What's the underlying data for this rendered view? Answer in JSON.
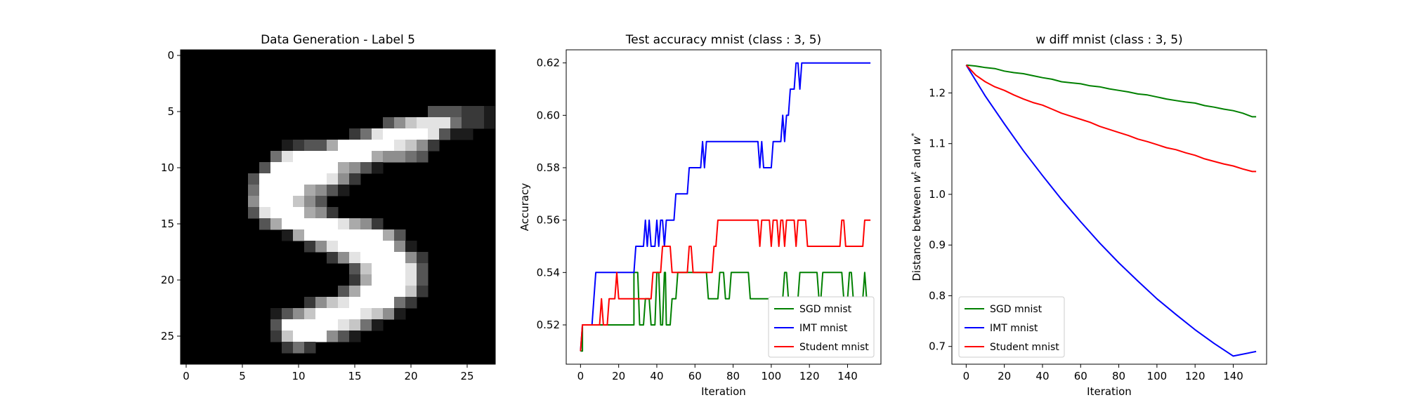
{
  "chart_data": [
    {
      "type": "heatmap",
      "title": "Data Generation - Label 5",
      "colormap": "grayscale",
      "xlim": [
        -0.5,
        27.5
      ],
      "ylim": [
        27.5,
        -0.5
      ],
      "xticks": [
        0,
        5,
        10,
        15,
        20,
        25
      ],
      "yticks": [
        0,
        5,
        10,
        15,
        20,
        25
      ],
      "image_rows": [
        "0000000000000000000000000000",
        "0000000000000000000000000000",
        "0000000000000000000000000000",
        "0000000000000000000000000000",
        "0000000000000000000000000000",
        "0000000000000000000000333221",
        "0000000000000000003578884221",
        "0000000000000002489999831100",
        "0000000001233699999875200000",
        "0000000048999999965543000000",
        "0000000399999965310000000000",
        "0000003999999852000000000000",
        "0000004999965310000000000000",
        "0000005999753000000000000000",
        "0000003899965200000000000000",
        "0000000369999986520000000000",
        "0000000001699999996300000000",
        "0000000000025899999510000000",
        "0000000000000258999952000000",
        "0000000000000003799983000000",
        "0000000000000002699983000000",
        "0000000000000036999972000000",
        "0000000000025789999420000000",
        "0000000013579999875100000000",
        "0000000039999987410000000000",
        "0000000027999531000000000000",
        "0000000002420000000000000000",
        "0000000000000000000000000000"
      ]
    },
    {
      "type": "line",
      "title": "Test accuracy mnist (class : 3, 5)",
      "xlabel": "Iteration",
      "ylabel": "Accuracy",
      "xlim": [
        -7.5,
        157.5
      ],
      "ylim": [
        0.505,
        0.625
      ],
      "xticks": [
        0,
        20,
        40,
        60,
        80,
        100,
        120,
        140
      ],
      "yticks": [
        0.52,
        0.54,
        0.56,
        0.58,
        0.6,
        0.62
      ],
      "ytick_labels": [
        "0.52",
        "0.54",
        "0.56",
        "0.58",
        "0.60",
        "0.62"
      ],
      "legend_position": "lower-right",
      "series": [
        {
          "name": "SGD mnist",
          "color": "#008000",
          "points": [
            [
              0,
              0.51
            ],
            [
              1,
              0.51
            ],
            [
              1,
              0.52
            ],
            [
              28,
              0.52
            ],
            [
              28,
              0.54
            ],
            [
              30,
              0.54
            ],
            [
              31,
              0.52
            ],
            [
              33,
              0.52
            ],
            [
              34,
              0.53
            ],
            [
              36,
              0.53
            ],
            [
              37,
              0.52
            ],
            [
              39,
              0.52
            ],
            [
              40,
              0.54
            ],
            [
              41,
              0.54
            ],
            [
              42,
              0.52
            ],
            [
              43,
              0.52
            ],
            [
              44,
              0.54
            ],
            [
              44.5,
              0.54
            ],
            [
              45,
              0.52
            ],
            [
              47,
              0.52
            ],
            [
              48,
              0.53
            ],
            [
              50,
              0.53
            ],
            [
              51,
              0.54
            ],
            [
              66,
              0.54
            ],
            [
              67,
              0.53
            ],
            [
              72,
              0.53
            ],
            [
              73,
              0.54
            ],
            [
              75,
              0.54
            ],
            [
              76,
              0.53
            ],
            [
              78,
              0.53
            ],
            [
              79,
              0.54
            ],
            [
              88,
              0.54
            ],
            [
              89,
              0.53
            ],
            [
              106,
              0.53
            ],
            [
              107,
              0.54
            ],
            [
              108,
              0.54
            ],
            [
              109,
              0.53
            ],
            [
              114,
              0.53
            ],
            [
              115,
              0.54
            ],
            [
              124,
              0.54
            ],
            [
              125,
              0.53
            ],
            [
              126,
              0.53
            ],
            [
              127,
              0.54
            ],
            [
              137,
              0.54
            ],
            [
              138,
              0.53
            ],
            [
              140,
              0.53
            ],
            [
              141,
              0.54
            ],
            [
              142,
              0.54
            ],
            [
              143,
              0.53
            ],
            [
              148,
              0.53
            ],
            [
              149,
              0.54
            ],
            [
              150,
              0.53
            ],
            [
              152,
              0.53
            ]
          ]
        },
        {
          "name": "IMT mnist",
          "color": "#0000ff",
          "points": [
            [
              0,
              0.51
            ],
            [
              1,
              0.52
            ],
            [
              6,
              0.52
            ],
            [
              7,
              0.53
            ],
            [
              8,
              0.54
            ],
            [
              28,
              0.54
            ],
            [
              29,
              0.55
            ],
            [
              33,
              0.55
            ],
            [
              34,
              0.56
            ],
            [
              35,
              0.55
            ],
            [
              36,
              0.56
            ],
            [
              37,
              0.55
            ],
            [
              39,
              0.55
            ],
            [
              40,
              0.56
            ],
            [
              41,
              0.55
            ],
            [
              42,
              0.56
            ],
            [
              43,
              0.56
            ],
            [
              44,
              0.55
            ],
            [
              45,
              0.56
            ],
            [
              49,
              0.56
            ],
            [
              50,
              0.57
            ],
            [
              56,
              0.57
            ],
            [
              57,
              0.58
            ],
            [
              63,
              0.58
            ],
            [
              64,
              0.59
            ],
            [
              65,
              0.58
            ],
            [
              66,
              0.59
            ],
            [
              93,
              0.59
            ],
            [
              94,
              0.58
            ],
            [
              95,
              0.59
            ],
            [
              96,
              0.58
            ],
            [
              100,
              0.58
            ],
            [
              101,
              0.59
            ],
            [
              105,
              0.59
            ],
            [
              106,
              0.6
            ],
            [
              107,
              0.59
            ],
            [
              108,
              0.6
            ],
            [
              109,
              0.6
            ],
            [
              110,
              0.61
            ],
            [
              112,
              0.61
            ],
            [
              113,
              0.62
            ],
            [
              114,
              0.62
            ],
            [
              115,
              0.61
            ],
            [
              116,
              0.62
            ],
            [
              152,
              0.62
            ]
          ]
        },
        {
          "name": "Student mnist",
          "color": "#ff0000",
          "points": [
            [
              0,
              0.51
            ],
            [
              1,
              0.52
            ],
            [
              10,
              0.52
            ],
            [
              11,
              0.53
            ],
            [
              12,
              0.52
            ],
            [
              14,
              0.52
            ],
            [
              15,
              0.53
            ],
            [
              18,
              0.53
            ],
            [
              19,
              0.54
            ],
            [
              20,
              0.53
            ],
            [
              37,
              0.53
            ],
            [
              38,
              0.54
            ],
            [
              42,
              0.54
            ],
            [
              43,
              0.55
            ],
            [
              47,
              0.55
            ],
            [
              48,
              0.54
            ],
            [
              56,
              0.54
            ],
            [
              57,
              0.55
            ],
            [
              58,
              0.55
            ],
            [
              59,
              0.54
            ],
            [
              69,
              0.54
            ],
            [
              70,
              0.55
            ],
            [
              71,
              0.55
            ],
            [
              72,
              0.56
            ],
            [
              93,
              0.56
            ],
            [
              94,
              0.55
            ],
            [
              95,
              0.56
            ],
            [
              99,
              0.56
            ],
            [
              100,
              0.55
            ],
            [
              101,
              0.56
            ],
            [
              103,
              0.56
            ],
            [
              104,
              0.55
            ],
            [
              105,
              0.56
            ],
            [
              106,
              0.56
            ],
            [
              107,
              0.55
            ],
            [
              108,
              0.56
            ],
            [
              112,
              0.56
            ],
            [
              113,
              0.55
            ],
            [
              114,
              0.56
            ],
            [
              118,
              0.56
            ],
            [
              119,
              0.55
            ],
            [
              136,
              0.55
            ],
            [
              137,
              0.56
            ],
            [
              138,
              0.56
            ],
            [
              139,
              0.55
            ],
            [
              148,
              0.55
            ],
            [
              149,
              0.56
            ],
            [
              152,
              0.56
            ]
          ]
        }
      ]
    },
    {
      "type": "line",
      "title": "w diff mnist (class : 3, 5)",
      "xlabel": "Iteration",
      "ylabel": "Distance between w^t and w^*",
      "ylabel_text": "Distance between",
      "ylabel_sym1": "w",
      "ylabel_sup1": "t",
      "ylabel_and": "and",
      "ylabel_sym2": "w",
      "ylabel_sup2": "*",
      "xlim": [
        -7.5,
        157.5
      ],
      "ylim": [
        0.665,
        1.285
      ],
      "xticks": [
        0,
        20,
        40,
        60,
        80,
        100,
        120,
        140
      ],
      "yticks": [
        0.7,
        0.8,
        0.9,
        1.0,
        1.1,
        1.2
      ],
      "ytick_labels": [
        "0.7",
        "0.8",
        "0.9",
        "1.0",
        "1.1",
        "1.2"
      ],
      "legend_position": "lower-left",
      "series": [
        {
          "name": "SGD mnist",
          "color": "#008000",
          "points": [
            [
              0,
              1.255
            ],
            [
              5,
              1.253
            ],
            [
              10,
              1.25
            ],
            [
              15,
              1.248
            ],
            [
              20,
              1.243
            ],
            [
              25,
              1.24
            ],
            [
              30,
              1.238
            ],
            [
              35,
              1.234
            ],
            [
              40,
              1.23
            ],
            [
              45,
              1.227
            ],
            [
              50,
              1.222
            ],
            [
              55,
              1.22
            ],
            [
              60,
              1.218
            ],
            [
              65,
              1.214
            ],
            [
              70,
              1.212
            ],
            [
              75,
              1.208
            ],
            [
              80,
              1.205
            ],
            [
              85,
              1.202
            ],
            [
              90,
              1.198
            ],
            [
              95,
              1.196
            ],
            [
              100,
              1.192
            ],
            [
              105,
              1.188
            ],
            [
              110,
              1.185
            ],
            [
              115,
              1.182
            ],
            [
              120,
              1.18
            ],
            [
              125,
              1.175
            ],
            [
              130,
              1.172
            ],
            [
              135,
              1.168
            ],
            [
              140,
              1.165
            ],
            [
              145,
              1.16
            ],
            [
              150,
              1.153
            ],
            [
              152,
              1.153
            ]
          ]
        },
        {
          "name": "IMT mnist",
          "color": "#0000ff",
          "points": [
            [
              0,
              1.255
            ],
            [
              10,
              1.194
            ],
            [
              20,
              1.139
            ],
            [
              30,
              1.086
            ],
            [
              40,
              1.037
            ],
            [
              50,
              0.99
            ],
            [
              60,
              0.946
            ],
            [
              70,
              0.904
            ],
            [
              80,
              0.865
            ],
            [
              90,
              0.829
            ],
            [
              100,
              0.794
            ],
            [
              110,
              0.763
            ],
            [
              120,
              0.733
            ],
            [
              130,
              0.706
            ],
            [
              140,
              0.681
            ],
            [
              152,
              0.69
            ]
          ]
        },
        {
          "name": "Student mnist",
          "color": "#ff0000",
          "points": [
            [
              0,
              1.255
            ],
            [
              5,
              1.235
            ],
            [
              10,
              1.222
            ],
            [
              15,
              1.212
            ],
            [
              20,
              1.205
            ],
            [
              25,
              1.196
            ],
            [
              30,
              1.188
            ],
            [
              35,
              1.181
            ],
            [
              40,
              1.176
            ],
            [
              45,
              1.168
            ],
            [
              50,
              1.16
            ],
            [
              55,
              1.154
            ],
            [
              60,
              1.148
            ],
            [
              65,
              1.142
            ],
            [
              70,
              1.134
            ],
            [
              75,
              1.128
            ],
            [
              80,
              1.122
            ],
            [
              85,
              1.116
            ],
            [
              90,
              1.109
            ],
            [
              95,
              1.104
            ],
            [
              100,
              1.098
            ],
            [
              105,
              1.092
            ],
            [
              110,
              1.088
            ],
            [
              115,
              1.082
            ],
            [
              120,
              1.077
            ],
            [
              125,
              1.07
            ],
            [
              130,
              1.065
            ],
            [
              135,
              1.06
            ],
            [
              140,
              1.056
            ],
            [
              145,
              1.05
            ],
            [
              150,
              1.045
            ],
            [
              152,
              1.045
            ]
          ]
        }
      ]
    }
  ]
}
